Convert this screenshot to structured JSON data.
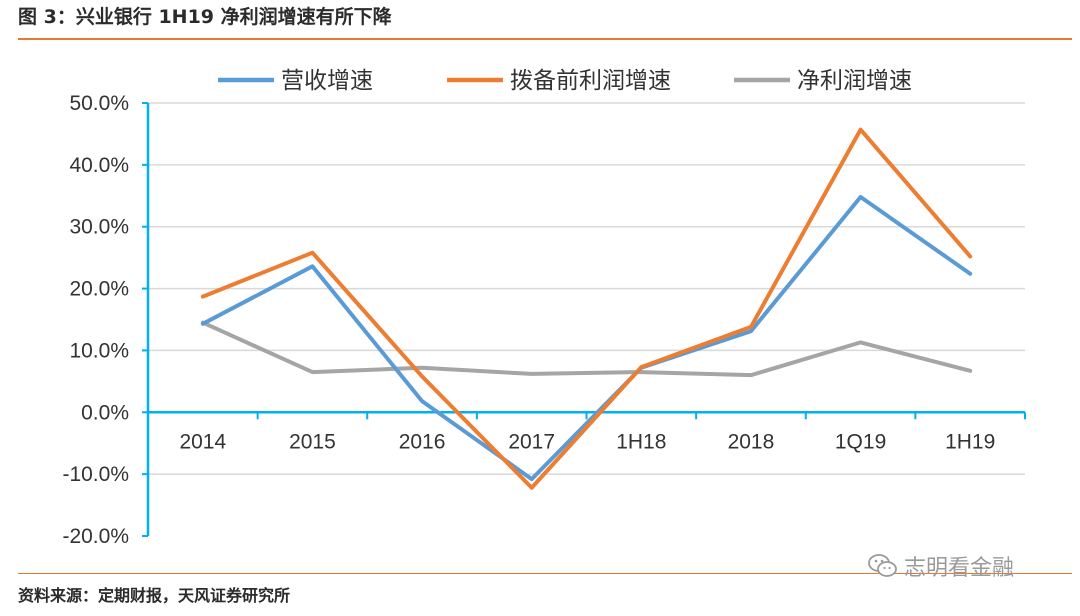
{
  "figure_title": "图 3：兴业银行 1H19 净利润增速有所下降",
  "source_note": "资料来源：定期财报，天风证券研究所",
  "watermark_text": "志明看金融",
  "colors": {
    "accent_rule": "#e8782f",
    "grid": "#d9d9d9",
    "axis": "#00b0f0"
  },
  "chart_data": {
    "type": "line",
    "title": "",
    "xlabel": "",
    "ylabel": "",
    "categories": [
      "2014",
      "2015",
      "2016",
      "2017",
      "1H18",
      "2018",
      "1Q19",
      "1H19"
    ],
    "ylim": [
      -20,
      50
    ],
    "yticks": [
      -20,
      -10,
      0,
      10,
      20,
      30,
      40,
      50
    ],
    "ytick_labels": [
      "-20.0%",
      "-10.0%",
      "0.0%",
      "10.0%",
      "20.0%",
      "30.0%",
      "40.0%",
      "50.0%"
    ],
    "grid": true,
    "legend_position": "top",
    "series": [
      {
        "name": "营收增速",
        "color": "#5b9bd5",
        "values": [
          14.3,
          23.6,
          1.8,
          -10.8,
          7.2,
          13.1,
          34.8,
          22.4
        ]
      },
      {
        "name": "拨备前利润增速",
        "color": "#ed7d31",
        "values": [
          18.7,
          25.8,
          5.8,
          -12.2,
          7.3,
          13.8,
          45.7,
          25.2
        ]
      },
      {
        "name": "净利润增速",
        "color": "#a5a5a5",
        "values": [
          14.5,
          6.5,
          7.2,
          6.2,
          6.5,
          6.0,
          11.3,
          6.7
        ]
      }
    ]
  }
}
